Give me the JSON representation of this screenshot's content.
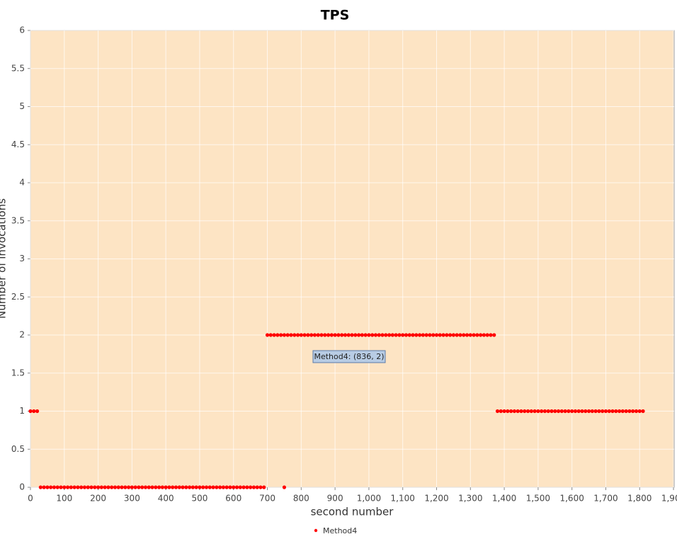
{
  "chart_data": {
    "type": "scatter",
    "title": "TPS",
    "x_label": "second number",
    "y_label": "Number of invocations",
    "annotation": "Method4: (836, 2)",
    "x": [
      0,
      10,
      20,
      30,
      40,
      50,
      60,
      70,
      80,
      90,
      100,
      110,
      120,
      130,
      140,
      150,
      160,
      170,
      180,
      190,
      200,
      210,
      220,
      230,
      240,
      250,
      260,
      270,
      280,
      290,
      300,
      310,
      320,
      330,
      340,
      350,
      360,
      370,
      380,
      390,
      400,
      410,
      420,
      430,
      440,
      450,
      460,
      470,
      480,
      490,
      500,
      510,
      520,
      530,
      540,
      550,
      560,
      570,
      580,
      590,
      600,
      610,
      620,
      630,
      640,
      650,
      660,
      670,
      680,
      690,
      700,
      710,
      720,
      730,
      740,
      750,
      750,
      760,
      770,
      780,
      790,
      800,
      810,
      820,
      830,
      840,
      850,
      860,
      870,
      880,
      890,
      900,
      910,
      920,
      930,
      940,
      950,
      960,
      970,
      980,
      990,
      1000,
      1010,
      1020,
      1030,
      1040,
      1050,
      1060,
      1070,
      1080,
      1090,
      1100,
      1110,
      1120,
      1130,
      1140,
      1150,
      1160,
      1170,
      1180,
      1190,
      1200,
      1210,
      1220,
      1230,
      1240,
      1250,
      1260,
      1270,
      1280,
      1290,
      1300,
      1310,
      1320,
      1330,
      1340,
      1350,
      1360,
      1370,
      1380,
      1390,
      1400,
      1410,
      1420,
      1430,
      1440,
      1450,
      1460,
      1470,
      1480,
      1490,
      1500,
      1510,
      1520,
      1530,
      1540,
      1550,
      1560,
      1570,
      1580,
      1590,
      1600,
      1610,
      1620,
      1630,
      1640,
      1650,
      1660,
      1670,
      1680,
      1690,
      1700,
      1710,
      1720,
      1730,
      1740,
      1750,
      1760,
      1770,
      1780,
      1790,
      1800,
      1810
    ],
    "series": [
      {
        "name": "Method4",
        "color": "#ff0000",
        "values": [
          1,
          1,
          1,
          0,
          0,
          0,
          0,
          0,
          0,
          0,
          0,
          0,
          0,
          0,
          0,
          0,
          0,
          0,
          0,
          0,
          0,
          0,
          0,
          0,
          0,
          0,
          0,
          0,
          0,
          0,
          0,
          0,
          0,
          0,
          0,
          0,
          0,
          0,
          0,
          0,
          0,
          0,
          0,
          0,
          0,
          0,
          0,
          0,
          0,
          0,
          0,
          0,
          0,
          0,
          0,
          0,
          0,
          0,
          0,
          0,
          0,
          0,
          0,
          0,
          0,
          0,
          0,
          0,
          0,
          0,
          2,
          2,
          2,
          2,
          2,
          2,
          0,
          2,
          2,
          2,
          2,
          2,
          2,
          2,
          2,
          2,
          2,
          2,
          2,
          2,
          2,
          2,
          2,
          2,
          2,
          2,
          2,
          2,
          2,
          2,
          2,
          2,
          2,
          2,
          2,
          2,
          2,
          2,
          2,
          2,
          2,
          2,
          2,
          2,
          2,
          2,
          2,
          2,
          2,
          2,
          2,
          2,
          2,
          2,
          2,
          2,
          2,
          2,
          2,
          2,
          2,
          2,
          2,
          2,
          2,
          2,
          2,
          2,
          2,
          1,
          1,
          1,
          1,
          1,
          1,
          1,
          1,
          1,
          1,
          1,
          1,
          1,
          1,
          1,
          1,
          1,
          1,
          1,
          1,
          1,
          1,
          1,
          1,
          1,
          1,
          1,
          1,
          1,
          1,
          1,
          1,
          1,
          1,
          1,
          1,
          1,
          1,
          1,
          1,
          1,
          1,
          1,
          1
        ]
      }
    ],
    "xlim": [
      0,
      1902
    ],
    "xticks": [
      0,
      100,
      200,
      300,
      400,
      500,
      600,
      700,
      800,
      900,
      {
        "value": 1000,
        "label": "1,000"
      },
      {
        "value": 1100,
        "label": "1,100"
      },
      {
        "value": 1200,
        "label": "1,200"
      },
      {
        "value": 1300,
        "label": "1,300"
      },
      {
        "value": 1400,
        "label": "1,400"
      },
      {
        "value": 1500,
        "label": "1,500"
      },
      {
        "value": 1600,
        "label": "1,600"
      },
      {
        "value": 1700,
        "label": "1,700"
      },
      {
        "value": 1800,
        "label": "1,800"
      },
      {
        "value": 1900,
        "label": "1,900"
      }
    ],
    "ylim": [
      0,
      6
    ],
    "yticks": [
      0,
      0.5,
      1,
      1.5,
      2,
      2.5,
      3,
      3.5,
      4,
      4.5,
      5,
      5.5,
      6
    ],
    "grid": true,
    "background": "#fde4c4"
  }
}
